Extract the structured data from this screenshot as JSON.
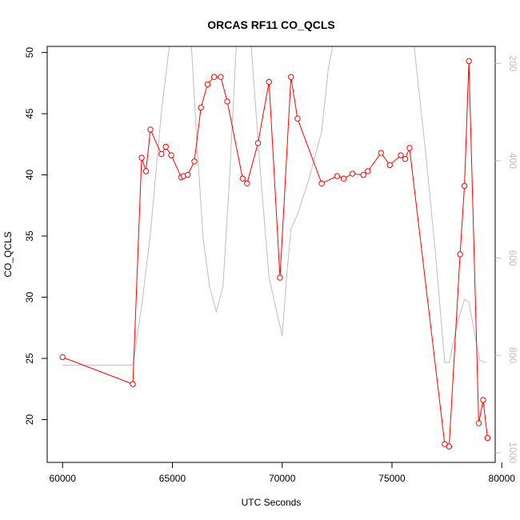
{
  "chart_data": {
    "type": "line",
    "title": "ORCAS RF11 CO_QCLS",
    "xlabel": "UTC Seconds",
    "ylabel": "CO_QCLS",
    "xlim": [
      59300,
      79700
    ],
    "ylim": [
      16.5,
      50.5
    ],
    "x_ticks": [
      "60000",
      "65000",
      "70000",
      "75000",
      "80000"
    ],
    "y_ticks": [
      "20",
      "25",
      "30",
      "35",
      "40",
      "45",
      "50"
    ],
    "right_axis": {
      "reversed": true,
      "ylim": [
        1020,
        165
      ],
      "ticks": [
        "200",
        "400",
        "600",
        "800",
        "1000"
      ]
    },
    "colors": {
      "primary": "#ff0000",
      "secondary": "#bebebe",
      "axis": "#000000"
    },
    "series": [
      {
        "axis": "left",
        "color": "#ff0000",
        "markers": "open-circle",
        "points": [
          [
            60000,
            25.1
          ],
          [
            63200,
            22.9
          ],
          [
            63600,
            41.4
          ],
          [
            63800,
            40.3
          ],
          [
            64000,
            43.7
          ],
          [
            64500,
            41.7
          ],
          [
            64700,
            42.3
          ],
          [
            64950,
            41.6
          ],
          [
            65400,
            39.8
          ],
          [
            65500,
            39.9
          ],
          [
            65700,
            40.0
          ],
          [
            66000,
            41.1
          ],
          [
            66300,
            45.5
          ],
          [
            66600,
            47.4
          ],
          [
            66900,
            48.0
          ],
          [
            67200,
            48.0
          ],
          [
            67500,
            46.0
          ],
          [
            68200,
            39.7
          ],
          [
            68400,
            39.3
          ],
          [
            68900,
            42.6
          ],
          [
            69400,
            47.6
          ],
          [
            69900,
            31.6
          ],
          [
            70400,
            48.0
          ],
          [
            70700,
            44.6
          ],
          [
            71800,
            39.3
          ],
          [
            72500,
            39.9
          ],
          [
            72800,
            39.7
          ],
          [
            73200,
            40.1
          ],
          [
            73700,
            40.0
          ],
          [
            73900,
            40.3
          ],
          [
            74500,
            41.8
          ],
          [
            74900,
            40.8
          ],
          [
            75400,
            41.6
          ],
          [
            75600,
            41.3
          ],
          [
            75800,
            42.2
          ],
          [
            77400,
            18.0
          ],
          [
            77600,
            17.8
          ],
          [
            78100,
            33.5
          ],
          [
            78300,
            39.1
          ],
          [
            78500,
            49.3
          ],
          [
            78950,
            19.7
          ],
          [
            79150,
            21.6
          ],
          [
            79350,
            18.5
          ]
        ]
      },
      {
        "axis": "right",
        "color": "#bebebe",
        "markers": "none",
        "points": [
          [
            60000,
            820
          ],
          [
            63200,
            820
          ],
          [
            63600,
            700
          ],
          [
            64000,
            550
          ],
          [
            64500,
            300
          ],
          [
            64900,
            150
          ],
          [
            65300,
            30
          ],
          [
            65700,
            60
          ],
          [
            65900,
            190
          ],
          [
            66100,
            350
          ],
          [
            66400,
            560
          ],
          [
            66700,
            660
          ],
          [
            67000,
            710
          ],
          [
            67300,
            660
          ],
          [
            67600,
            440
          ],
          [
            67900,
            170
          ],
          [
            68200,
            60
          ],
          [
            68600,
            170
          ],
          [
            69000,
            420
          ],
          [
            69400,
            640
          ],
          [
            70000,
            760
          ],
          [
            70200,
            640
          ],
          [
            70400,
            540
          ],
          [
            70700,
            510
          ],
          [
            71200,
            440
          ],
          [
            71800,
            340
          ],
          [
            72100,
            210
          ],
          [
            72500,
            120
          ],
          [
            72900,
            130
          ],
          [
            73200,
            160
          ],
          [
            73600,
            60
          ],
          [
            74000,
            130
          ],
          [
            74400,
            160
          ],
          [
            74600,
            160
          ],
          [
            75000,
            60
          ],
          [
            75500,
            80
          ],
          [
            76000,
            160
          ],
          [
            76500,
            370
          ],
          [
            77000,
            600
          ],
          [
            77400,
            815
          ],
          [
            77600,
            815
          ],
          [
            78000,
            730
          ],
          [
            78300,
            685
          ],
          [
            78500,
            690
          ],
          [
            78800,
            765
          ],
          [
            79000,
            810
          ],
          [
            79300,
            815
          ]
        ]
      }
    ]
  }
}
